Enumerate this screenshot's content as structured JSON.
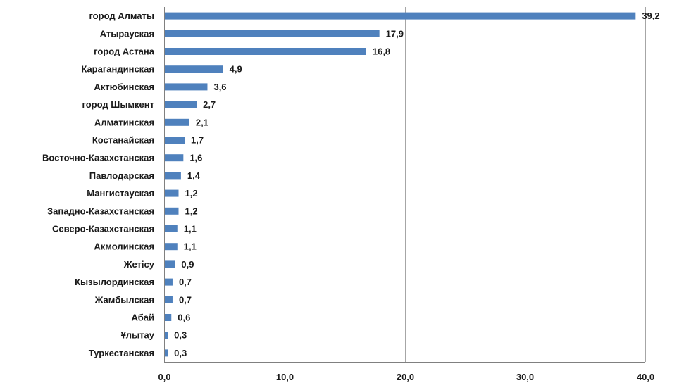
{
  "chart_data": {
    "type": "bar",
    "orientation": "horizontal",
    "categories": [
      "город Алматы",
      "Атырауская",
      "город Астана",
      "Карагандинская",
      "Актюбинская",
      "город Шымкент",
      "Алматинская",
      "Костанайская",
      "Восточно-Казахстанская",
      "Павлодарская",
      "Мангистауская",
      "Западно-Казахстанская",
      "Северо-Казахстанская",
      "Акмолинская",
      "Жетісу",
      "Кызылординская",
      "Жамбылская",
      "Абай",
      "Ұлытау",
      "Туркестанская"
    ],
    "values": [
      39.2,
      17.9,
      16.8,
      4.9,
      3.6,
      2.7,
      2.1,
      1.7,
      1.6,
      1.4,
      1.2,
      1.2,
      1.1,
      1.1,
      0.9,
      0.7,
      0.7,
      0.6,
      0.3,
      0.3
    ],
    "value_labels": [
      "39,2",
      "17,9",
      "16,8",
      "4,9",
      "3,6",
      "2,7",
      "2,1",
      "1,7",
      "1,6",
      "1,4",
      "1,2",
      "1,2",
      "1,1",
      "1,1",
      "0,9",
      "0,7",
      "0,7",
      "0,6",
      "0,3",
      "0,3"
    ],
    "xlim": [
      0,
      40
    ],
    "ticks": [
      0,
      10,
      20,
      30,
      40
    ],
    "tick_labels": [
      "0,0",
      "10,0",
      "20,0",
      "30,0",
      "40,0"
    ],
    "grid": true,
    "legend": "none",
    "title": "",
    "xlabel": "",
    "ylabel": "",
    "colors": {
      "bar": "#4f81bd",
      "grid": "#a6a6a6",
      "axis": "#808080",
      "text": "#1a1a1a"
    }
  }
}
